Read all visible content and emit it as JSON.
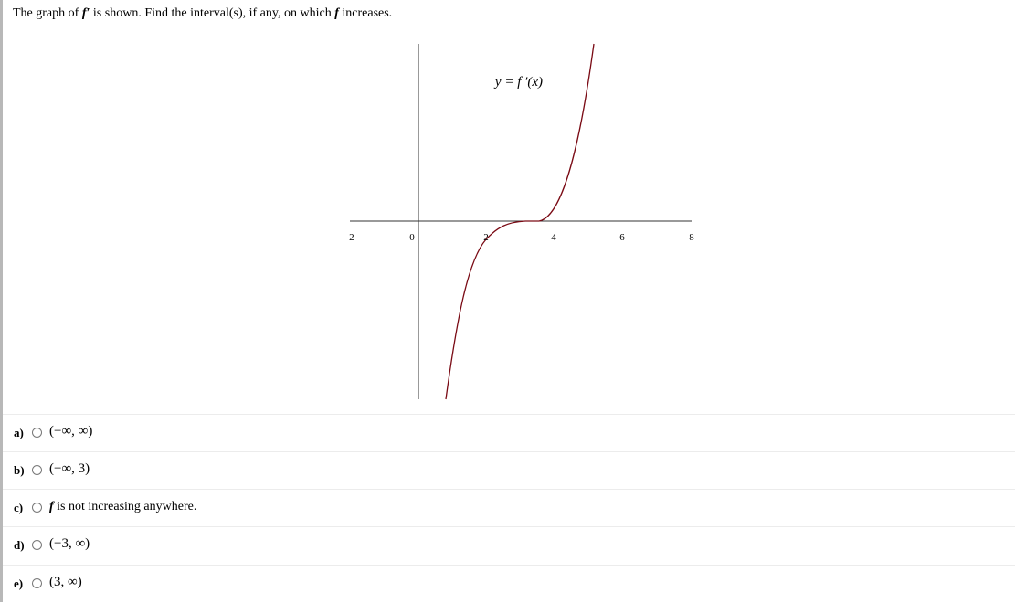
{
  "question": {
    "segments": [
      "The graph of ",
      "f′",
      " is shown. Find the interval(s), if any, on which ",
      "f",
      " increases."
    ]
  },
  "graph": {
    "curve_label": "y = f ′(x)",
    "xtick_labels": [
      "-2",
      "0",
      "2",
      "4",
      "6",
      "8"
    ]
  },
  "options": [
    {
      "letter": "a)",
      "segments": [
        "(−∞, ∞)"
      ]
    },
    {
      "letter": "b)",
      "segments": [
        "(−∞, 3)"
      ]
    },
    {
      "letter": "c)",
      "segments": [
        "f",
        " is not increasing anywhere."
      ]
    },
    {
      "letter": "d)",
      "segments": [
        "(−3, ∞)"
      ]
    },
    {
      "letter": "e)",
      "segments": [
        "(3, ∞)"
      ]
    }
  ]
}
